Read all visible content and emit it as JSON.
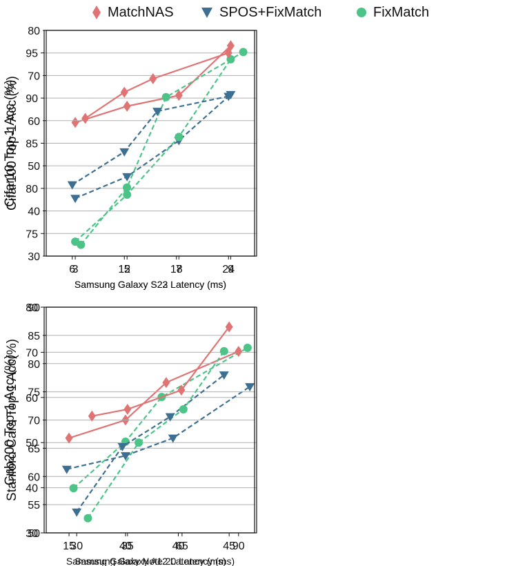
{
  "legend": [
    {
      "name": "MatchNAS",
      "color": "#e07373",
      "marker": "diamond",
      "dash": false
    },
    {
      "name": "SPOS+FixMatch",
      "color": "#3d6f92",
      "marker": "triangle-down",
      "dash": true
    },
    {
      "name": "FixMatch",
      "color": "#4cc488",
      "marker": "circle",
      "dash": true
    }
  ],
  "chart_data": [
    {
      "type": "line",
      "xlabel": "Samsung Galaxy S23 Latency (ms)",
      "ylabel": "Cifar10 Top-1 Acc (%)",
      "xlim": [
        1.8,
        10.0
      ],
      "ylim": [
        72.5,
        97.5
      ],
      "xticks": [
        3,
        5,
        7,
        9
      ],
      "yticks": [
        75,
        80,
        85,
        90,
        95
      ],
      "grid": "horizontal",
      "series": [
        {
          "name": "MatchNAS",
          "x": [
            3,
            5,
            7,
            9
          ],
          "y": [
            87.3,
            89.1,
            90.3,
            95.8
          ]
        },
        {
          "name": "SPOS+FixMatch",
          "x": [
            3,
            5,
            7,
            9
          ],
          "y": [
            78.9,
            81.3,
            85.3,
            90.4
          ]
        },
        {
          "name": "FixMatch",
          "x": [
            3,
            5,
            7,
            9
          ],
          "y": [
            74.1,
            79.3,
            85.7,
            94.3
          ]
        }
      ]
    },
    {
      "type": "line",
      "xlabel": "Samsung Galaxy S22 Latency (ms)",
      "ylabel": "Cifar100 Top-1 Acc (%)",
      "xlim": [
        3.0,
        27.0
      ],
      "ylim": [
        30,
        80
      ],
      "xticks": [
        6,
        12,
        18,
        24
      ],
      "yticks": [
        30,
        40,
        50,
        60,
        70,
        80
      ],
      "grid": "horizontal",
      "series": [
        {
          "name": "MatchNAS",
          "x": [
            7.5,
            12.0,
            15.3,
            24.0
          ],
          "y": [
            60.5,
            66.3,
            69.3,
            75.0
          ]
        },
        {
          "name": "SPOS+FixMatch",
          "x": [
            6.0,
            12.0,
            15.8,
            24.0
          ],
          "y": [
            45.8,
            53.1,
            62.1,
            65.4
          ]
        },
        {
          "name": "FixMatch",
          "x": [
            7.0,
            12.3,
            16.8,
            25.7
          ],
          "y": [
            32.5,
            45.2,
            65.2,
            75.2
          ]
        }
      ]
    },
    {
      "type": "line",
      "xlabel": "Samsung Galaxy Note 20 Latency (ms)",
      "ylabel": "Cub200 Top-1 Acc (%)",
      "xlim": [
        4.0,
        98.0
      ],
      "ylim": [
        30,
        80
      ],
      "xticks": [
        15,
        40,
        65,
        90
      ],
      "yticks": [
        30,
        40,
        50,
        60,
        70,
        80
      ],
      "grid": "horizontal",
      "series": [
        {
          "name": "MatchNAS",
          "x": [
            15,
            40,
            58,
            90
          ],
          "y": [
            51.0,
            55.0,
            63.3,
            70.2
          ]
        },
        {
          "name": "SPOS+FixMatch",
          "x": [
            14,
            40,
            61,
            95
          ],
          "y": [
            44.1,
            47.1,
            51.0,
            62.4
          ]
        },
        {
          "name": "FixMatch",
          "x": [
            17,
            40,
            56,
            94
          ],
          "y": [
            39.9,
            50.2,
            60.1,
            71.0
          ]
        }
      ]
    },
    {
      "type": "line",
      "xlabel": "Samsung Galaxy A12 Latency (ms)",
      "ylabel": "Stanford Cars Top-1 Acc(%)",
      "xlim": [
        27.0,
        47.5
      ],
      "ylim": [
        50,
        90
      ],
      "xticks": [
        30,
        35,
        40,
        45
      ],
      "yticks": [
        50,
        55,
        60,
        65,
        70,
        75,
        80,
        85,
        90
      ],
      "grid": "horizontal",
      "series": [
        {
          "name": "MatchNAS",
          "x": [
            31.5,
            35.0,
            40.3,
            45.0
          ],
          "y": [
            70.7,
            71.9,
            75.3,
            86.5
          ]
        },
        {
          "name": "SPOS+FixMatch",
          "x": [
            30.0,
            34.5,
            39.2,
            44.5
          ],
          "y": [
            53.7,
            65.3,
            70.6,
            78.0
          ]
        },
        {
          "name": "FixMatch",
          "x": [
            31.1,
            36.1,
            40.5,
            44.5
          ],
          "y": [
            52.6,
            66.0,
            71.9,
            82.2
          ]
        }
      ]
    }
  ]
}
